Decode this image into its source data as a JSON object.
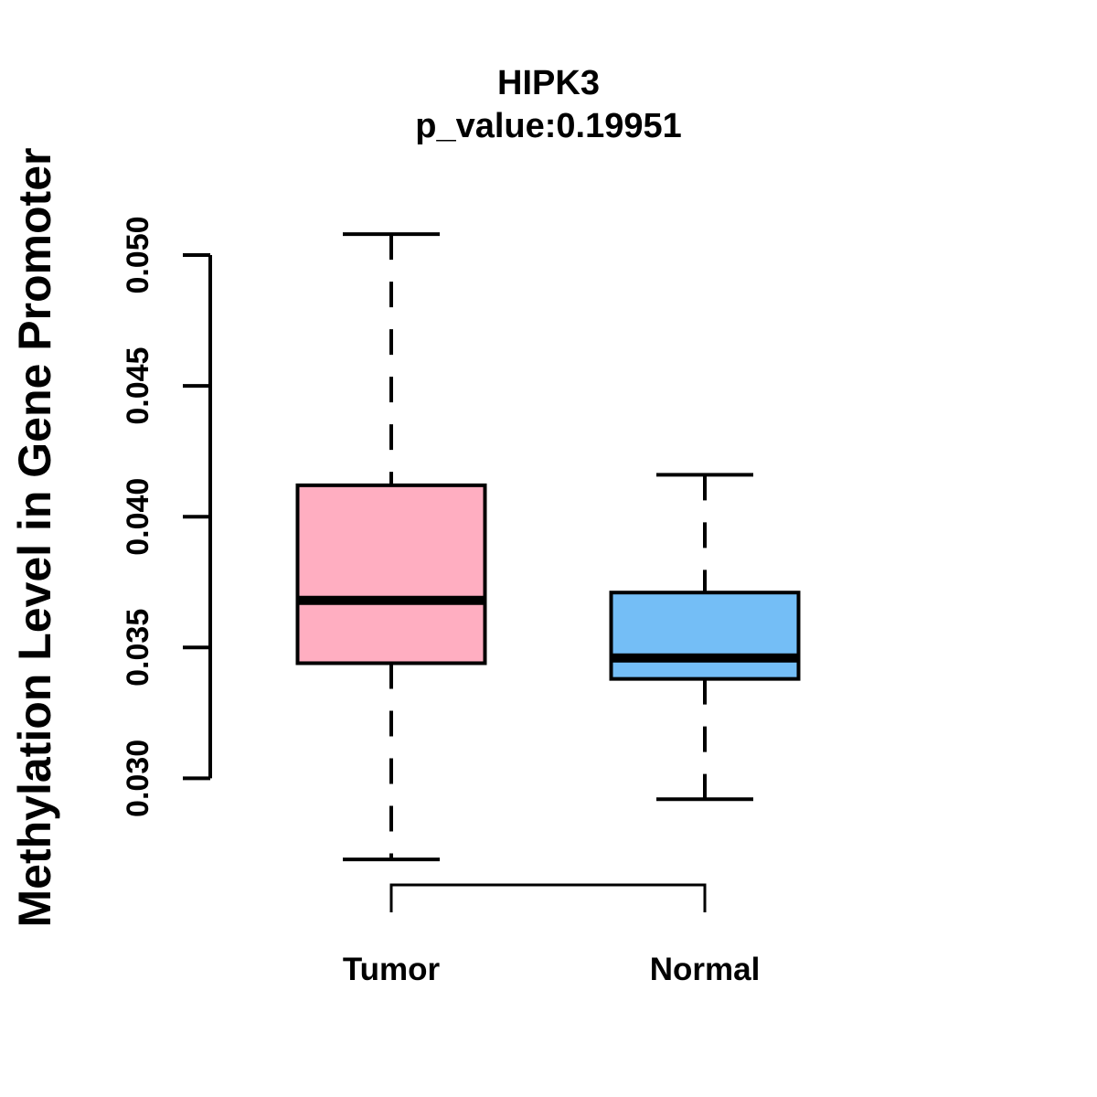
{
  "figure": {
    "title": "HIPK3",
    "subtitle": "p_value:0.19951"
  },
  "chart_data": {
    "type": "boxplot",
    "title": "HIPK3",
    "subtitle": "p_value:0.19951",
    "p_value": 0.19951,
    "gene": "HIPK3",
    "ylabel": "Methylation Level in Gene Promoter",
    "xlabel": "",
    "y_axis": {
      "range_shown": [
        0.03,
        0.05
      ],
      "ticks": [
        {
          "value": 0.03,
          "label": "0.030"
        },
        {
          "value": 0.035,
          "label": "0.035"
        },
        {
          "value": 0.04,
          "label": "0.040"
        },
        {
          "value": 0.045,
          "label": "0.045"
        },
        {
          "value": 0.05,
          "label": "0.050"
        }
      ]
    },
    "groups": [
      {
        "label": "Tumor",
        "fill_color": "#FFAEC1",
        "stats": {
          "whisker_low": 0.0269,
          "q1": 0.0344,
          "median": 0.0368,
          "q3": 0.0412,
          "whisker_high": 0.0508
        }
      },
      {
        "label": "Normal",
        "fill_color": "#74BEF6",
        "stats": {
          "whisker_low": 0.0292,
          "q1": 0.0338,
          "median": 0.0346,
          "q3": 0.0371,
          "whisker_high": 0.0416
        }
      }
    ],
    "style": {
      "line_color": "#000000",
      "background": "#FFFFFF",
      "whisker_line_style": "dashed",
      "legend": "none",
      "grid": "off"
    }
  }
}
